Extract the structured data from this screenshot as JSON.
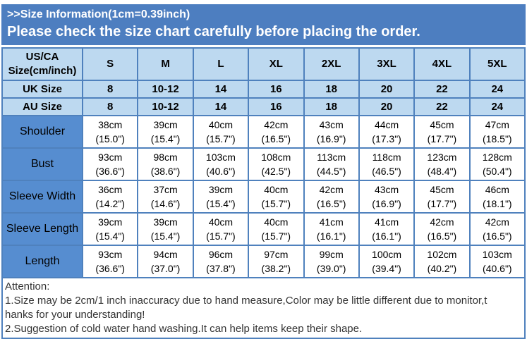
{
  "theme": {
    "banner_blue": "#4d7ec0",
    "light_blue": "#bdd9f0",
    "label_blue": "#568dd0",
    "border_blue": "#4f81bd",
    "note_text": "#333333",
    "banner_text": "#ffffff",
    "cell_text": "#000000"
  },
  "banner": {
    "title": ">>Size Information(1cm=0.39inch)",
    "subtitle": "Please check the size chart carefully before placing the order."
  },
  "table": {
    "corner_label": "US/CA\nSize(cm/inch)",
    "size_columns": [
      "S",
      "M",
      "L",
      "XL",
      "2XL",
      "3XL",
      "4XL",
      "5XL"
    ],
    "size_rows": [
      {
        "label": "UK Size",
        "cells": [
          "8",
          "10-12",
          "14",
          "16",
          "18",
          "20",
          "22",
          "24"
        ]
      },
      {
        "label": "AU Size",
        "cells": [
          "8",
          "10-12",
          "14",
          "16",
          "18",
          "20",
          "22",
          "24"
        ]
      }
    ],
    "measure_rows": [
      {
        "label": "Shoulder",
        "cells": [
          "38cm\n(15.0\")",
          "39cm\n(15.4\")",
          "40cm\n(15.7\")",
          "42cm\n(16.5\")",
          "43cm\n(16.9\")",
          "44cm\n(17.3\")",
          "45cm\n(17.7\")",
          "47cm\n(18.5\")"
        ]
      },
      {
        "label": "Bust",
        "cells": [
          "93cm\n(36.6\")",
          "98cm\n(38.6\")",
          "103cm\n(40.6\")",
          "108cm\n(42.5\")",
          "113cm\n(44.5\")",
          "118cm\n(46.5\")",
          "123cm\n(48.4\")",
          "128cm\n(50.4\")"
        ]
      },
      {
        "label": "Sleeve Width",
        "cells": [
          "36cm\n(14.2\")",
          "37cm\n(14.6\")",
          "39cm\n(15.4\")",
          "40cm\n(15.7\")",
          "42cm\n(16.5\")",
          "43cm\n(16.9\")",
          "45cm\n(17.7\")",
          "46cm\n(18.1\")"
        ]
      },
      {
        "label": "Sleeve Length",
        "cells": [
          "39cm\n(15.4\")",
          "39cm\n(15.4\")",
          "40cm\n(15.7\")",
          "40cm\n(15.7\")",
          "41cm\n(16.1\")",
          "41cm\n(16.1\")",
          "42cm\n(16.5\")",
          "42cm\n(16.5\")"
        ]
      },
      {
        "label": "Length",
        "cells": [
          "93cm\n(36.6\")",
          "94cm\n(37.0\")",
          "96cm\n(37.8\")",
          "97cm\n(38.2\")",
          "99cm\n(39.0\")",
          "100cm\n(39.4\")",
          "102cm\n(40.2\")",
          "103cm\n(40.6\")"
        ]
      }
    ]
  },
  "attention": {
    "lines": [
      "Attention:",
      "1.Size may be 2cm/1 inch inaccuracy due to hand measure,Color may be little different due to monitor,t",
      "hanks for your understanding!",
      "2.Suggestion of cold water hand washing.It can help items keep their shape."
    ]
  }
}
